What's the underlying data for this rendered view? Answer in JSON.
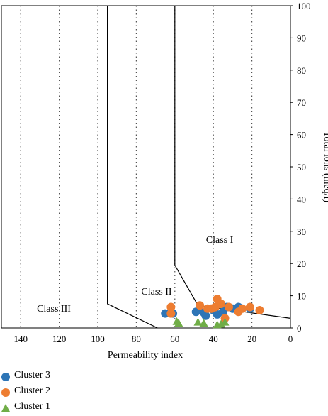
{
  "chart_data": {
    "type": "scatter",
    "xlabel": "Permeability index",
    "ylabel": "Total ions (meq/l)",
    "xlim": [
      150,
      0
    ],
    "ylim": [
      0,
      100
    ],
    "x_reversed": true,
    "x_ticks": [
      140,
      120,
      100,
      80,
      60,
      40,
      20,
      0
    ],
    "y_ticks": [
      0,
      10,
      20,
      30,
      40,
      50,
      60,
      70,
      80,
      90,
      100
    ],
    "vertical_gridlines": "dotted",
    "legend_position": "bottom-left",
    "region_labels": [
      "Class I",
      "Class II",
      "Class III"
    ],
    "series": [
      {
        "name": "Cluster 3",
        "marker": "circle",
        "color": "#2e75b6",
        "x": [
          65,
          61,
          49,
          45,
          44,
          40,
          38,
          35,
          33,
          30,
          27,
          21
        ],
        "y": [
          4.5,
          4.5,
          5,
          4.8,
          3.8,
          5.5,
          4.2,
          5,
          6.5,
          6,
          6.5,
          6
        ]
      },
      {
        "name": "Cluster 2",
        "marker": "circle",
        "color": "#ed7d31",
        "x": [
          62,
          62,
          47,
          43,
          41,
          39,
          38,
          36,
          34,
          32,
          27,
          25,
          21,
          16
        ],
        "y": [
          6.5,
          4.5,
          7,
          6,
          6,
          6.5,
          9,
          7.5,
          3,
          6.5,
          5,
          6,
          6.5,
          5.5
        ]
      },
      {
        "name": "Cluster 1",
        "marker": "triangle",
        "color": "#70ad47",
        "x": [
          59,
          58,
          48,
          45,
          38,
          36,
          34
        ],
        "y": [
          2,
          1.5,
          1.8,
          1.5,
          1,
          1.2,
          1.8
        ]
      }
    ],
    "boundary_lines": [
      {
        "points": [
          [
            95,
            100
          ],
          [
            95,
            7.5
          ],
          [
            69,
            0
          ]
        ]
      },
      {
        "points": [
          [
            60,
            100
          ],
          [
            60,
            19.5
          ],
          [
            48,
            7
          ],
          [
            0,
            3
          ]
        ]
      }
    ]
  }
}
